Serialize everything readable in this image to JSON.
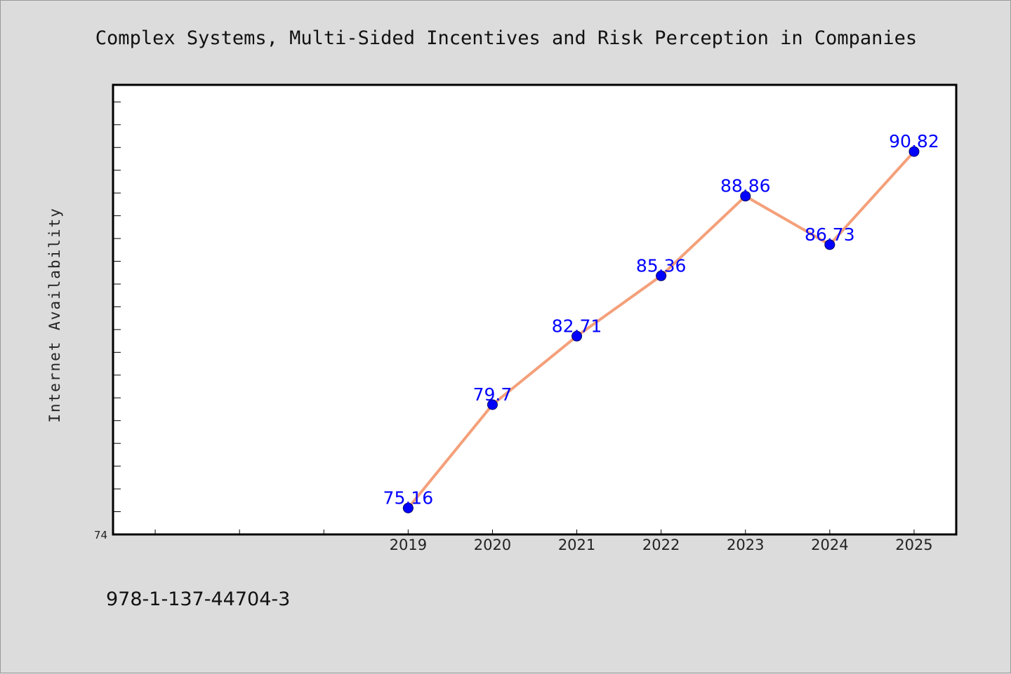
{
  "chart_data": {
    "type": "line",
    "title": "Complex Systems, Multi-Sided Incentives and Risk Perception in Companies",
    "xlabel": "",
    "ylabel": "Internet Availability",
    "ylim_min_label": "74",
    "ylim": [
      74,
      93.75
    ],
    "xlim": [
      2015.5,
      2025.5
    ],
    "grid": false,
    "legend": "none",
    "categories": [
      "2019",
      "2020",
      "2021",
      "2022",
      "2023",
      "2024",
      "2025"
    ],
    "series": [
      {
        "x": [
          2019,
          2020,
          2021,
          2022,
          2023,
          2024,
          2025
        ],
        "values": [
          75.16,
          79.7,
          82.71,
          85.36,
          88.86,
          86.73,
          90.82
        ],
        "labels": [
          "75.16",
          "79.7",
          "82.71",
          "85.36",
          "88.86",
          "86.73",
          "90.82"
        ]
      }
    ],
    "colors": {
      "line": "#f4a07a",
      "marker": "#0000ff",
      "data_label": "#0000ff"
    }
  },
  "footer": {
    "isbn": "978-1-137-44704-3"
  }
}
